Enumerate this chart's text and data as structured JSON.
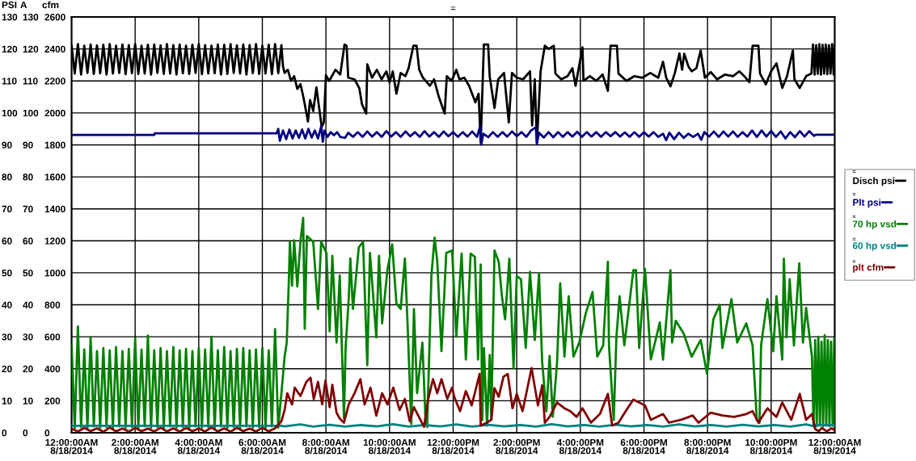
{
  "chart_data": {
    "type": "line",
    "title": "=",
    "ylabel": "PSI",
    "y2label": "A",
    "y3label": "cfm",
    "xlim": [
      "2014-08-18T00:00",
      "2014-08-19T00:00"
    ],
    "xticks": [
      {
        "value": "2014-08-18T00:00",
        "label": "12:00:00AM\n8/18/2014"
      },
      {
        "value": "2014-08-18T02:00",
        "label": "2:00:00AM\n8/18/2014"
      },
      {
        "value": "2014-08-18T04:00",
        "label": "4:00:00AM\n8/18/2014"
      },
      {
        "value": "2014-08-18T06:00",
        "label": "6:00:00AM\n8/18/2014"
      },
      {
        "value": "2014-08-18T08:00",
        "label": "8:00:00AM\n8/18/2014"
      },
      {
        "value": "2014-08-18T10:00",
        "label": "10:00:00AM\n8/18/2014"
      },
      {
        "value": "2014-08-18T12:00",
        "label": "12:00:00PM\n8/18/2014"
      },
      {
        "value": "2014-08-18T14:00",
        "label": "2:00:00PM\n8/18/2014"
      },
      {
        "value": "2014-08-18T16:00",
        "label": "4:00:00PM\n8/18/2014"
      },
      {
        "value": "2014-08-18T18:00",
        "label": "6:00:00PM\n8/18/2014"
      },
      {
        "value": "2014-08-18T20:00",
        "label": "8:00:00PM\n8/18/2014"
      },
      {
        "value": "2014-08-18T22:00",
        "label": "10:00:00PM\n8/18/2014"
      },
      {
        "value": "2014-08-19T00:00",
        "label": "12:00:00AM\n8/19/2014"
      }
    ],
    "ylim": [
      0,
      130
    ],
    "yticks": [
      0,
      10,
      20,
      30,
      40,
      50,
      60,
      70,
      80,
      90,
      100,
      110,
      120,
      130
    ],
    "y2lim": [
      0,
      130
    ],
    "y2ticks": [
      0,
      10,
      20,
      30,
      40,
      50,
      60,
      70,
      80,
      90,
      100,
      110,
      120,
      130
    ],
    "y3lim": [
      0,
      2600
    ],
    "y3ticks": [
      0,
      200,
      400,
      600,
      800,
      1000,
      1200,
      1400,
      1600,
      1800,
      2000,
      2200,
      2400,
      2600
    ],
    "grid": true,
    "legend": "right",
    "annotations": [
      "=",
      "=",
      "=",
      "=",
      "="
    ],
    "series": [
      {
        "name": "Disch psi",
        "color": "#000000",
        "axis": "y",
        "x": [
          "2014-08-18T00:00",
          "2014-08-18T00:06",
          "2014-08-18T00:12",
          "2014-08-18T00:18",
          "2014-08-18T00:24",
          "2014-08-18T00:30",
          "2014-08-18T00:36",
          "2014-08-18T00:42",
          "2014-08-18T00:48",
          "2014-08-18T00:54",
          "2014-08-18T01:00",
          "2014-08-18T01:06",
          "2014-08-18T01:12",
          "2014-08-18T01:18",
          "2014-08-18T01:24",
          "2014-08-18T01:30",
          "2014-08-18T01:36",
          "2014-08-18T01:42",
          "2014-08-18T01:48",
          "2014-08-18T01:54",
          "2014-08-18T02:00",
          "2014-08-18T02:06",
          "2014-08-18T02:12",
          "2014-08-18T02:18",
          "2014-08-18T02:24",
          "2014-08-18T02:30",
          "2014-08-18T02:36",
          "2014-08-18T02:42",
          "2014-08-18T02:48",
          "2014-08-18T02:54",
          "2014-08-18T03:00",
          "2014-08-18T03:06",
          "2014-08-18T03:12",
          "2014-08-18T03:18",
          "2014-08-18T03:24",
          "2014-08-18T03:30",
          "2014-08-18T03:36",
          "2014-08-18T03:42",
          "2014-08-18T03:48",
          "2014-08-18T03:54",
          "2014-08-18T04:00",
          "2014-08-18T04:06",
          "2014-08-18T04:12",
          "2014-08-18T04:18",
          "2014-08-18T04:24",
          "2014-08-18T04:30",
          "2014-08-18T04:36",
          "2014-08-18T04:42",
          "2014-08-18T04:48",
          "2014-08-18T04:54",
          "2014-08-18T05:00",
          "2014-08-18T05:06",
          "2014-08-18T05:12",
          "2014-08-18T05:18",
          "2014-08-18T05:24",
          "2014-08-18T05:30",
          "2014-08-18T05:36",
          "2014-08-18T05:42",
          "2014-08-18T05:48",
          "2014-08-18T05:54",
          "2014-08-18T06:00",
          "2014-08-18T06:06",
          "2014-08-18T06:12",
          "2014-08-18T06:18",
          "2014-08-18T06:24",
          "2014-08-18T06:30",
          "2014-08-18T06:36",
          "2014-08-18T06:39",
          "2014-08-18T06:42",
          "2014-08-18T06:48",
          "2014-08-18T06:54",
          "2014-08-18T07:00",
          "2014-08-18T07:06",
          "2014-08-18T07:12",
          "2014-08-18T07:18",
          "2014-08-18T07:26",
          "2014-08-18T07:30",
          "2014-08-18T07:36",
          "2014-08-18T07:42",
          "2014-08-18T07:52",
          "2014-08-18T07:56",
          "2014-08-18T08:00",
          "2014-08-18T08:06",
          "2014-08-18T08:18",
          "2014-08-18T08:27",
          "2014-08-18T08:35",
          "2014-08-18T08:39",
          "2014-08-18T08:42",
          "2014-08-18T08:54",
          "2014-08-18T09:03",
          "2014-08-18T09:08",
          "2014-08-18T09:16",
          "2014-08-18T09:18",
          "2014-08-18T09:27",
          "2014-08-18T09:36",
          "2014-08-18T09:45",
          "2014-08-18T09:54",
          "2014-08-18T10:00",
          "2014-08-18T10:06",
          "2014-08-18T10:13",
          "2014-08-18T10:21",
          "2014-08-18T10:30",
          "2014-08-18T10:36",
          "2014-08-18T10:45",
          "2014-08-18T10:51",
          "2014-08-18T10:56",
          "2014-08-18T11:03",
          "2014-08-18T11:16",
          "2014-08-18T11:24",
          "2014-08-18T11:33",
          "2014-08-18T11:44",
          "2014-08-18T11:48",
          "2014-08-18T11:57",
          "2014-08-18T12:06",
          "2014-08-18T12:12",
          "2014-08-18T12:21",
          "2014-08-18T12:30",
          "2014-08-18T12:42",
          "2014-08-18T12:48",
          "2014-08-18T12:52",
          "2014-08-18T12:58",
          "2014-08-18T13:06",
          "2014-08-18T13:09",
          "2014-08-18T13:18",
          "2014-08-18T13:25",
          "2014-08-18T13:36",
          "2014-08-18T13:45",
          "2014-08-18T13:51",
          "2014-08-18T14:00",
          "2014-08-18T14:12",
          "2014-08-18T14:25",
          "2014-08-18T14:29",
          "2014-08-18T14:34",
          "2014-08-18T14:38",
          "2014-08-18T14:45",
          "2014-08-18T14:53",
          "2014-08-18T15:00",
          "2014-08-18T15:10",
          "2014-08-18T15:13",
          "2014-08-18T15:24",
          "2014-08-18T15:36",
          "2014-08-18T15:45",
          "2014-08-18T15:51",
          "2014-08-18T16:04",
          "2014-08-18T16:06",
          "2014-08-18T16:18",
          "2014-08-18T16:30",
          "2014-08-18T16:42",
          "2014-08-18T16:52",
          "2014-08-18T16:57",
          "2014-08-18T17:09",
          "2014-08-18T17:12",
          "2014-08-18T17:27",
          "2014-08-18T17:42",
          "2014-08-18T17:57",
          "2014-08-18T18:12",
          "2014-08-18T18:27",
          "2014-08-18T18:36",
          "2014-08-18T18:42",
          "2014-08-18T18:50",
          "2014-08-18T18:58",
          "2014-08-18T19:07",
          "2014-08-18T19:12",
          "2014-08-18T19:16",
          "2014-08-18T19:24",
          "2014-08-18T19:30",
          "2014-08-18T19:39",
          "2014-08-18T19:47",
          "2014-08-18T19:55",
          "2014-08-18T20:06",
          "2014-08-18T20:18",
          "2014-08-18T20:33",
          "2014-08-18T20:48",
          "2014-08-18T21:00",
          "2014-08-18T21:12",
          "2014-08-18T21:19",
          "2014-08-18T21:25",
          "2014-08-18T21:36",
          "2014-08-18T21:39",
          "2014-08-18T21:50",
          "2014-08-18T22:00",
          "2014-08-18T22:10",
          "2014-08-18T22:21",
          "2014-08-18T22:30",
          "2014-08-18T22:41",
          "2014-08-18T22:44",
          "2014-08-18T22:54",
          "2014-08-18T23:06",
          "2014-08-18T23:16",
          "2014-08-18T23:19",
          "2014-08-18T23:22",
          "2014-08-18T23:25",
          "2014-08-18T23:28",
          "2014-08-18T23:31",
          "2014-08-18T23:34",
          "2014-08-18T23:37",
          "2014-08-18T23:40",
          "2014-08-18T23:43",
          "2014-08-18T23:46",
          "2014-08-18T23:49",
          "2014-08-18T23:52",
          "2014-08-18T23:55",
          "2014-08-18T23:58",
          "2014-08-19T00:00"
        ],
        "values": [
          121.2,
          112.3,
          121.5,
          112,
          121,
          112.5,
          121.4,
          112.2,
          121.1,
          112.4,
          121.3,
          112,
          121.5,
          112.3,
          121,
          112.5,
          121.4,
          112.1,
          121.2,
          112.4,
          121.5,
          112.2,
          121,
          112.3,
          121.3,
          112,
          121.4,
          112.5,
          121.1,
          112.2,
          121.5,
          112.3,
          121.2,
          112,
          121.4,
          112.4,
          121,
          112.2,
          121.3,
          112.5,
          121.5,
          112.1,
          121.2,
          112.3,
          121,
          112.4,
          121.4,
          112,
          121.3,
          112.2,
          121.5,
          112.5,
          121.1,
          112.3,
          121.4,
          112,
          121.2,
          112.4,
          121.5,
          112.2,
          121,
          112.3,
          121.3,
          112.1,
          121.5,
          112.4,
          121.2,
          114.5,
          112.5,
          113.5,
          110,
          111.5,
          107.5,
          109,
          104.5,
          97.3,
          104,
          100.6,
          108,
          95.6,
          97,
          111.8,
          110,
          113.5,
          112,
          121.4,
          121,
          111,
          110.5,
          107.7,
          102.7,
          99.8,
          115.2,
          111,
          113.5,
          110.5,
          113,
          109.5,
          113,
          106,
          112.5,
          111.5,
          114,
          121,
          121,
          113.5,
          111,
          108.5,
          110.5,
          105,
          99.8,
          111.5,
          110,
          113.5,
          110.5,
          111,
          108.5,
          103.3,
          106,
          90.7,
          121.4,
          121.4,
          111.4,
          101.5,
          110.5,
          112.5,
          97,
          112.5,
          111,
          110.5,
          113,
          96.1,
          110.5,
          90.7,
          113,
          121,
          120,
          121,
          112.3,
          110.5,
          111.5,
          114,
          108.5,
          120.5,
          110,
          111.5,
          110,
          112,
          106.9,
          121,
          121,
          112.3,
          110,
          111.5,
          111,
          112.5,
          111,
          116,
          111,
          108.3,
          112.3,
          118.6,
          113.5,
          118.5,
          114.5,
          113,
          114,
          119.5,
          111,
          112.8,
          110.5,
          112,
          111.5,
          113,
          111,
          109.6,
          121,
          121,
          112.3,
          108.9,
          113,
          115.5,
          107.8,
          111.5,
          119.5,
          110.5,
          107.8,
          111.5,
          112.3,
          121.4,
          112,
          121.2,
          112.2,
          121.5,
          112,
          121.3,
          112.3,
          121.4,
          112.1,
          121.2,
          112.3,
          121.5,
          112,
          121.3
        ]
      },
      {
        "name": "Plt psi",
        "color": "#000080",
        "axis": "y",
        "x": [
          "2014-08-18T00:00",
          "2014-08-18T02:36",
          "2014-08-18T02:37",
          "2014-08-18T06:27",
          "2014-08-18T06:30",
          "2014-08-18T06:33",
          "2014-08-18T06:39",
          "2014-08-18T06:45",
          "2014-08-18T06:51",
          "2014-08-18T06:57",
          "2014-08-18T07:03",
          "2014-08-18T07:09",
          "2014-08-18T07:15",
          "2014-08-18T07:21",
          "2014-08-18T07:27",
          "2014-08-18T07:33",
          "2014-08-18T07:39",
          "2014-08-18T07:45",
          "2014-08-18T07:51",
          "2014-08-18T07:54",
          "2014-08-18T07:57",
          "2014-08-18T08:03",
          "2014-08-18T08:09",
          "2014-08-18T08:15",
          "2014-08-18T08:21",
          "2014-08-18T08:27",
          "2014-08-18T08:36",
          "2014-08-18T08:42",
          "2014-08-18T08:51",
          "2014-08-18T09:00",
          "2014-08-18T09:09",
          "2014-08-18T09:18",
          "2014-08-18T09:27",
          "2014-08-18T09:36",
          "2014-08-18T09:45",
          "2014-08-18T09:54",
          "2014-08-18T10:03",
          "2014-08-18T10:12",
          "2014-08-18T10:21",
          "2014-08-18T10:30",
          "2014-08-18T10:39",
          "2014-08-18T10:48",
          "2014-08-18T10:57",
          "2014-08-18T11:06",
          "2014-08-18T11:15",
          "2014-08-18T11:24",
          "2014-08-18T11:33",
          "2014-08-18T11:42",
          "2014-08-18T11:51",
          "2014-08-18T12:00",
          "2014-08-18T12:09",
          "2014-08-18T12:18",
          "2014-08-18T12:27",
          "2014-08-18T12:36",
          "2014-08-18T12:45",
          "2014-08-18T12:51",
          "2014-08-18T12:53",
          "2014-08-18T12:57",
          "2014-08-18T13:06",
          "2014-08-18T13:15",
          "2014-08-18T13:24",
          "2014-08-18T13:33",
          "2014-08-18T13:42",
          "2014-08-18T13:51",
          "2014-08-18T14:00",
          "2014-08-18T14:09",
          "2014-08-18T14:18",
          "2014-08-18T14:27",
          "2014-08-18T14:36",
          "2014-08-18T14:38",
          "2014-08-18T14:42",
          "2014-08-18T14:51",
          "2014-08-18T15:00",
          "2014-08-18T15:09",
          "2014-08-18T15:18",
          "2014-08-18T15:27",
          "2014-08-18T15:36",
          "2014-08-18T15:45",
          "2014-08-18T15:54",
          "2014-08-18T16:03",
          "2014-08-18T16:12",
          "2014-08-18T16:21",
          "2014-08-18T16:30",
          "2014-08-18T16:39",
          "2014-08-18T16:48",
          "2014-08-18T16:57",
          "2014-08-18T17:06",
          "2014-08-18T17:15",
          "2014-08-18T17:24",
          "2014-08-18T17:33",
          "2014-08-18T17:42",
          "2014-08-18T17:51",
          "2014-08-18T18:00",
          "2014-08-18T18:09",
          "2014-08-18T18:18",
          "2014-08-18T18:27",
          "2014-08-18T18:36",
          "2014-08-18T18:42",
          "2014-08-18T18:48",
          "2014-08-18T18:57",
          "2014-08-18T19:06",
          "2014-08-18T19:15",
          "2014-08-18T19:24",
          "2014-08-18T19:33",
          "2014-08-18T19:42",
          "2014-08-18T19:48",
          "2014-08-18T19:54",
          "2014-08-18T20:03",
          "2014-08-18T20:12",
          "2014-08-18T20:21",
          "2014-08-18T20:30",
          "2014-08-18T20:39",
          "2014-08-18T20:48",
          "2014-08-18T20:57",
          "2014-08-18T21:06",
          "2014-08-18T21:15",
          "2014-08-18T21:24",
          "2014-08-18T21:33",
          "2014-08-18T21:42",
          "2014-08-18T21:51",
          "2014-08-18T22:00",
          "2014-08-18T22:09",
          "2014-08-18T22:18",
          "2014-08-18T22:27",
          "2014-08-18T22:36",
          "2014-08-18T22:45",
          "2014-08-18T22:54",
          "2014-08-18T23:03",
          "2014-08-18T23:12",
          "2014-08-18T23:21",
          "2014-08-18T23:24",
          "2014-08-19T00:00"
        ],
        "values": [
          93.1,
          93.1,
          93.6,
          93.6,
          95,
          91.3,
          94.5,
          91.8,
          94.8,
          92,
          94.5,
          92.2,
          94.8,
          92,
          95,
          92.3,
          94.5,
          92,
          95.8,
          91,
          94.5,
          92.5,
          94,
          93,
          94,
          92.5,
          92.2,
          93.8,
          92.5,
          94,
          92.5,
          94.2,
          92.6,
          94,
          92.5,
          94.3,
          92.6,
          94,
          92.5,
          94.2,
          92.7,
          94,
          92.5,
          94.3,
          92.6,
          94,
          92.5,
          94.2,
          92.7,
          94,
          92.5,
          94,
          92.6,
          94.2,
          92.5,
          95.8,
          90.1,
          93.5,
          92.4,
          94,
          92.5,
          94,
          92.6,
          94.2,
          92.7,
          94,
          92.5,
          94.5,
          95.5,
          90.3,
          93.8,
          92.3,
          94,
          92.4,
          94,
          92.5,
          94,
          92.6,
          94.1,
          92.5,
          94,
          92.6,
          94,
          92.5,
          94,
          92.7,
          94,
          92.6,
          93.9,
          92.5,
          94,
          92.5,
          94,
          92.6,
          94,
          92.5,
          93.5,
          91.5,
          93.8,
          91.8,
          93.8,
          92.2,
          93.5,
          92.5,
          93.5,
          91.6,
          94,
          92.6,
          94.2,
          92.5,
          94.2,
          92.6,
          94.2,
          92.5,
          94,
          92.6,
          94.5,
          92.5,
          94.5,
          92.6,
          94.4,
          92.5,
          94.2,
          92,
          94,
          92.4,
          94.3,
          92.6,
          94.3,
          92.8,
          93.2,
          93.2
        ]
      },
      {
        "name": "70 hp vsd",
        "color": "#008000",
        "axis": "y2",
        "x": [
          "2014-08-18T00:00",
          "2014-08-18T00:06",
          "2014-08-18T00:12",
          "2014-08-18T00:18",
          "2014-08-18T00:24",
          "2014-08-18T00:30",
          "2014-08-18T00:36",
          "2014-08-18T00:42",
          "2014-08-18T00:48",
          "2014-08-18T00:54",
          "2014-08-18T01:00",
          "2014-08-18T01:06",
          "2014-08-18T01:12",
          "2014-08-18T01:18",
          "2014-08-18T01:24",
          "2014-08-18T01:30",
          "2014-08-18T01:36",
          "2014-08-18T01:42",
          "2014-08-18T01:48",
          "2014-08-18T01:54",
          "2014-08-18T02:00",
          "2014-08-18T02:06",
          "2014-08-18T02:12",
          "2014-08-18T02:18",
          "2014-08-18T02:24",
          "2014-08-18T02:30",
          "2014-08-18T02:36",
          "2014-08-18T02:42",
          "2014-08-18T02:48",
          "2014-08-18T02:54",
          "2014-08-18T03:00",
          "2014-08-18T03:06",
          "2014-08-18T03:12",
          "2014-08-18T03:18",
          "2014-08-18T03:24",
          "2014-08-18T03:30",
          "2014-08-18T03:36",
          "2014-08-18T03:42",
          "2014-08-18T03:48",
          "2014-08-18T03:54",
          "2014-08-18T04:00",
          "2014-08-18T04:06",
          "2014-08-18T04:12",
          "2014-08-18T04:18",
          "2014-08-18T04:24",
          "2014-08-18T04:30",
          "2014-08-18T04:36",
          "2014-08-18T04:42",
          "2014-08-18T04:48",
          "2014-08-18T04:54",
          "2014-08-18T05:00",
          "2014-08-18T05:06",
          "2014-08-18T05:12",
          "2014-08-18T05:18",
          "2014-08-18T05:24",
          "2014-08-18T05:30",
          "2014-08-18T05:36",
          "2014-08-18T05:42",
          "2014-08-18T05:48",
          "2014-08-18T05:54",
          "2014-08-18T06:00",
          "2014-08-18T06:06",
          "2014-08-18T06:12",
          "2014-08-18T06:18",
          "2014-08-18T06:24",
          "2014-08-18T06:30",
          "2014-08-18T06:36",
          "2014-08-18T06:42",
          "2014-08-18T06:46",
          "2014-08-18T06:50",
          "2014-08-18T06:52",
          "2014-08-18T06:56",
          "2014-08-18T07:00",
          "2014-08-18T07:06",
          "2014-08-18T07:12",
          "2014-08-18T07:17",
          "2014-08-18T07:20",
          "2014-08-18T07:24",
          "2014-08-18T07:36",
          "2014-08-18T07:45",
          "2014-08-18T07:51",
          "2014-08-18T08:01",
          "2014-08-18T08:07",
          "2014-08-18T08:12",
          "2014-08-18T08:20",
          "2014-08-18T08:26",
          "2014-08-18T08:34",
          "2014-08-18T08:37",
          "2014-08-18T08:43",
          "2014-08-18T08:46",
          "2014-08-18T08:51",
          "2014-08-18T09:02",
          "2014-08-18T09:10",
          "2014-08-18T09:18",
          "2014-08-18T09:23",
          "2014-08-18T09:35",
          "2014-08-18T09:40",
          "2014-08-18T09:46",
          "2014-08-18T09:56",
          "2014-08-18T10:05",
          "2014-08-18T10:13",
          "2014-08-18T10:21",
          "2014-08-18T10:29",
          "2014-08-18T10:35",
          "2014-08-18T10:41",
          "2014-08-18T10:46",
          "2014-08-18T10:52",
          "2014-08-18T11:02",
          "2014-08-18T11:08",
          "2014-08-18T11:11",
          "2014-08-18T11:19",
          "2014-08-18T11:25",
          "2014-08-18T11:30",
          "2014-08-18T11:38",
          "2014-08-18T11:47",
          "2014-08-18T11:58",
          "2014-08-18T12:06",
          "2014-08-18T12:16",
          "2014-08-18T12:24",
          "2014-08-18T12:33",
          "2014-08-18T12:41",
          "2014-08-18T12:47",
          "2014-08-18T12:52",
          "2014-08-18T12:55",
          "2014-08-18T12:58",
          "2014-08-18T13:04",
          "2014-08-18T13:09",
          "2014-08-18T13:12",
          "2014-08-18T13:18",
          "2014-08-18T13:26",
          "2014-08-18T13:32",
          "2014-08-18T13:38",
          "2014-08-18T13:46",
          "2014-08-18T13:54",
          "2014-08-18T14:00",
          "2014-08-18T14:08",
          "2014-08-18T14:17",
          "2014-08-18T14:25",
          "2014-08-18T14:34",
          "2014-08-18T14:42",
          "2014-08-18T14:48",
          "2014-08-18T14:56",
          "2014-08-18T15:02",
          "2014-08-18T15:08",
          "2014-08-18T15:16",
          "2014-08-18T15:22",
          "2014-08-18T15:30",
          "2014-08-18T15:38",
          "2014-08-18T15:47",
          "2014-08-18T15:58",
          "2014-08-18T16:10",
          "2014-08-18T16:23",
          "2014-08-18T16:32",
          "2014-08-18T16:43",
          "2014-08-18T16:52",
          "2014-08-18T16:54",
          "2014-08-18T17:03",
          "2014-08-18T17:08",
          "2014-08-18T17:14",
          "2014-08-18T17:23",
          "2014-08-18T17:40",
          "2014-08-18T17:45",
          "2014-08-18T17:51",
          "2014-08-18T18:02",
          "2014-08-18T18:13",
          "2014-08-18T18:30",
          "2014-08-18T18:36",
          "2014-08-18T18:50",
          "2014-08-18T18:53",
          "2014-08-18T19:00",
          "2014-08-18T19:15",
          "2014-08-18T19:30",
          "2014-08-18T19:47",
          "2014-08-18T19:59",
          "2014-08-18T20:11",
          "2014-08-18T20:23",
          "2014-08-18T20:28",
          "2014-08-18T20:45",
          "2014-08-18T20:56",
          "2014-08-18T21:13",
          "2014-08-18T21:25",
          "2014-08-18T21:33",
          "2014-08-18T21:38",
          "2014-08-18T21:41",
          "2014-08-18T21:53",
          "2014-08-18T22:04",
          "2014-08-18T22:10",
          "2014-08-18T22:21",
          "2014-08-18T22:24",
          "2014-08-18T22:29",
          "2014-08-18T22:35",
          "2014-08-18T22:43",
          "2014-08-18T22:53",
          "2014-08-18T23:00",
          "2014-08-18T23:06",
          "2014-08-18T23:17",
          "2014-08-18T23:20",
          "2014-08-18T23:23",
          "2014-08-18T23:26",
          "2014-08-18T23:29",
          "2014-08-18T23:32",
          "2014-08-18T23:35",
          "2014-08-18T23:38",
          "2014-08-18T23:41",
          "2014-08-18T23:44",
          "2014-08-18T23:47",
          "2014-08-18T23:50",
          "2014-08-18T23:53",
          "2014-08-18T23:56",
          "2014-08-18T23:59",
          "2014-08-19T00:00"
        ],
        "values": [
          27.7,
          1.5,
          33.2,
          1.8,
          26,
          1.5,
          29.9,
          2,
          25.5,
          1.6,
          26.5,
          1.8,
          25.8,
          1.5,
          26.8,
          2,
          25.5,
          1.6,
          26.2,
          1.8,
          29.5,
          1.5,
          26,
          2,
          30.4,
          1.6,
          25.8,
          1.8,
          26.5,
          1.5,
          25.5,
          2,
          26.8,
          1.6,
          25.8,
          1.8,
          26.2,
          1.5,
          25.5,
          2,
          26.5,
          1.6,
          26,
          1.8,
          30,
          1.5,
          25.8,
          2,
          26.8,
          1.6,
          25.5,
          1.8,
          26.2,
          1.5,
          26.5,
          2,
          25.8,
          1.6,
          26,
          1.8,
          26.5,
          1.5,
          25.8,
          2,
          32.4,
          1.6,
          12.4,
          23.8,
          28.2,
          47.5,
          59.7,
          46,
          60.2,
          45.7,
          60,
          67.2,
          32.5,
          61.5,
          59.7,
          38.7,
          59.7,
          56.2,
          31.7,
          55.3,
          28.2,
          49.2,
          4.5,
          26.4,
          42,
          54.5,
          38.7,
          58,
          59.7,
          21.1,
          56.2,
          29.8,
          55.3,
          34.2,
          51,
          58.9,
          40.4,
          38.7,
          54.5,
          29.8,
          2.7,
          38.7,
          12.4,
          28.2,
          3.6,
          1.8,
          49.2,
          61,
          53.6,
          25.5,
          56.2,
          57,
          30,
          56,
          22.9,
          56,
          55,
          22.9,
          52.6,
          4,
          26.5,
          2.2,
          24.3,
          4,
          57,
          53.5,
          42.7,
          35.5,
          54.4,
          20.2,
          49,
          48,
          26.5,
          50.3,
          29,
          49.9,
          22,
          6.7,
          24,
          5,
          22,
          46.7,
          23.8,
          42.7,
          23.8,
          28.2,
          37.2,
          44,
          23.8,
          27.3,
          53.5,
          27.3,
          4,
          29.8,
          42.7,
          27.3,
          50.8,
          50.8,
          26.5,
          51.2,
          22.9,
          34.5,
          22.9,
          50.8,
          28.2,
          35,
          31,
          23.8,
          29,
          18.4,
          35.5,
          40,
          26.5,
          41.8,
          28.2,
          34.2,
          27.3,
          4,
          3.1,
          27.3,
          41.8,
          25.5,
          42.7,
          22.9,
          54.4,
          29.8,
          48,
          27.3,
          53,
          28.2,
          39,
          23.8,
          2,
          29,
          2,
          30,
          2.2,
          28.5,
          2,
          30.5,
          2.2,
          29,
          2,
          28.5,
          2.2,
          29.5,
          2
        ]
      },
      {
        "name": "60 hp vsd",
        "color": "#008080",
        "axis": "y2",
        "x": [
          "2014-08-18T00:00",
          "2014-08-18T06:36",
          "2014-08-18T06:42",
          "2014-08-18T07:12",
          "2014-08-18T07:36",
          "2014-08-18T08:06",
          "2014-08-18T08:36",
          "2014-08-18T09:06",
          "2014-08-18T09:36",
          "2014-08-18T10:06",
          "2014-08-18T10:36",
          "2014-08-18T11:06",
          "2014-08-18T11:36",
          "2014-08-18T12:06",
          "2014-08-18T12:36",
          "2014-08-18T13:06",
          "2014-08-18T13:36",
          "2014-08-18T14:06",
          "2014-08-18T14:36",
          "2014-08-18T15:06",
          "2014-08-18T15:36",
          "2014-08-18T16:06",
          "2014-08-18T16:36",
          "2014-08-18T17:06",
          "2014-08-18T17:36",
          "2014-08-18T18:06",
          "2014-08-18T18:36",
          "2014-08-18T19:06",
          "2014-08-18T19:36",
          "2014-08-18T20:06",
          "2014-08-18T20:36",
          "2014-08-18T21:06",
          "2014-08-18T21:36",
          "2014-08-18T22:06",
          "2014-08-18T22:36",
          "2014-08-18T23:06",
          "2014-08-18T23:18",
          "2014-08-18T23:24",
          "2014-08-19T00:00"
        ],
        "values": [
          2.2,
          2.2,
          2,
          2.6,
          1.9,
          2.5,
          1.9,
          2.4,
          2,
          2.7,
          1.9,
          2.4,
          2,
          2.6,
          1.9,
          2.5,
          2,
          2.4,
          1.9,
          2.7,
          2,
          2.4,
          1.9,
          2.5,
          2,
          2.4,
          1.9,
          2.6,
          2,
          2.4,
          1.9,
          2.5,
          2,
          2.4,
          1.9,
          2.6,
          2.1,
          2.4,
          2.4
        ]
      },
      {
        "name": "plt cfm",
        "color": "#800000",
        "axis": "y3",
        "x": [
          "2014-08-18T00:00",
          "2014-08-18T00:12",
          "2014-08-18T00:24",
          "2014-08-18T00:36",
          "2014-08-18T00:48",
          "2014-08-18T01:00",
          "2014-08-18T01:12",
          "2014-08-18T01:24",
          "2014-08-18T01:36",
          "2014-08-18T01:48",
          "2014-08-18T02:00",
          "2014-08-18T02:12",
          "2014-08-18T02:24",
          "2014-08-18T02:36",
          "2014-08-18T02:48",
          "2014-08-18T03:00",
          "2014-08-18T03:12",
          "2014-08-18T03:24",
          "2014-08-18T03:36",
          "2014-08-18T03:48",
          "2014-08-18T04:00",
          "2014-08-18T04:12",
          "2014-08-18T04:24",
          "2014-08-18T04:36",
          "2014-08-18T04:48",
          "2014-08-18T05:00",
          "2014-08-18T05:12",
          "2014-08-18T05:24",
          "2014-08-18T05:36",
          "2014-08-18T05:48",
          "2014-08-18T06:00",
          "2014-08-18T06:12",
          "2014-08-18T06:24",
          "2014-08-18T06:36",
          "2014-08-18T06:42",
          "2014-08-18T06:47",
          "2014-08-18T06:56",
          "2014-08-18T07:01",
          "2014-08-18T07:12",
          "2014-08-18T07:23",
          "2014-08-18T07:31",
          "2014-08-18T07:37",
          "2014-08-18T07:45",
          "2014-08-18T07:53",
          "2014-08-18T07:59",
          "2014-08-18T08:07",
          "2014-08-18T08:12",
          "2014-08-18T08:20",
          "2014-08-18T08:26",
          "2014-08-18T08:34",
          "2014-08-18T08:43",
          "2014-08-18T08:54",
          "2014-08-18T09:05",
          "2014-08-18T09:13",
          "2014-08-18T09:24",
          "2014-08-18T09:35",
          "2014-08-18T09:46",
          "2014-08-18T09:56",
          "2014-08-18T10:07",
          "2014-08-18T10:19",
          "2014-08-18T10:29",
          "2014-08-18T10:38",
          "2014-08-18T10:46",
          "2014-08-18T10:57",
          "2014-08-18T11:05",
          "2014-08-18T11:13",
          "2014-08-18T11:22",
          "2014-08-18T11:30",
          "2014-08-18T11:38",
          "2014-08-18T11:49",
          "2014-08-18T11:58",
          "2014-08-18T12:02",
          "2014-08-18T12:13",
          "2014-08-18T12:24",
          "2014-08-18T12:35",
          "2014-08-18T12:50",
          "2014-08-18T12:52",
          "2014-08-18T13:04",
          "2014-08-18T13:12",
          "2014-08-18T13:18",
          "2014-08-18T13:26",
          "2014-08-18T13:35",
          "2014-08-18T13:43",
          "2014-08-18T13:52",
          "2014-08-18T14:00",
          "2014-08-18T14:11",
          "2014-08-18T14:28",
          "2014-08-18T14:40",
          "2014-08-18T14:48",
          "2014-08-18T14:53",
          "2014-08-18T15:02",
          "2014-08-18T15:16",
          "2014-08-18T15:30",
          "2014-08-18T15:41",
          "2014-08-18T15:53",
          "2014-08-18T16:04",
          "2014-08-18T16:20",
          "2014-08-18T16:37",
          "2014-08-18T16:52",
          "2014-08-18T17:00",
          "2014-08-18T17:12",
          "2014-08-18T17:29",
          "2014-08-18T17:40",
          "2014-08-18T18:02",
          "2014-08-18T18:13",
          "2014-08-18T18:36",
          "2014-08-18T18:47",
          "2014-08-18T19:10",
          "2014-08-18T19:32",
          "2014-08-18T19:43",
          "2014-08-18T20:06",
          "2014-08-18T20:28",
          "2014-08-18T20:50",
          "2014-08-18T21:13",
          "2014-08-18T21:25",
          "2014-08-18T21:36",
          "2014-08-18T21:53",
          "2014-08-18T22:10",
          "2014-08-18T22:21",
          "2014-08-18T22:38",
          "2014-08-18T22:54",
          "2014-08-18T23:06",
          "2014-08-18T23:17",
          "2014-08-18T23:23",
          "2014-08-18T23:30",
          "2014-08-18T23:36",
          "2014-08-18T23:45",
          "2014-08-18T23:54",
          "2014-08-19T00:00"
        ],
        "values": [
          25,
          8,
          30,
          10,
          28,
          6,
          32,
          9,
          27,
          7,
          30,
          10,
          26,
          8,
          31,
          9,
          28,
          7,
          30,
          10,
          27,
          8,
          32,
          9,
          28,
          7,
          30,
          10,
          26,
          8,
          31,
          9,
          28,
          72,
          142,
          247,
          177,
          282,
          230,
          318,
          344,
          210,
          318,
          177,
          326,
          160,
          300,
          125,
          89,
          63,
          177,
          247,
          335,
          177,
          282,
          107,
          247,
          177,
          282,
          142,
          212,
          72,
          160,
          89,
          37,
          212,
          335,
          247,
          335,
          212,
          282,
          225,
          135,
          260,
          171,
          368,
          45,
          63,
          81,
          279,
          225,
          350,
          368,
          153,
          243,
          135,
          404,
          171,
          297,
          63,
          99,
          189,
          153,
          135,
          99,
          153,
          63,
          117,
          243,
          45,
          63,
          153,
          207,
          171,
          81,
          117,
          63,
          81,
          108,
          63,
          126,
          108,
          99,
          117,
          135,
          63,
          153,
          99,
          189,
          81,
          243,
          81,
          117,
          23,
          10,
          30,
          8,
          28,
          15
        ]
      }
    ]
  }
}
